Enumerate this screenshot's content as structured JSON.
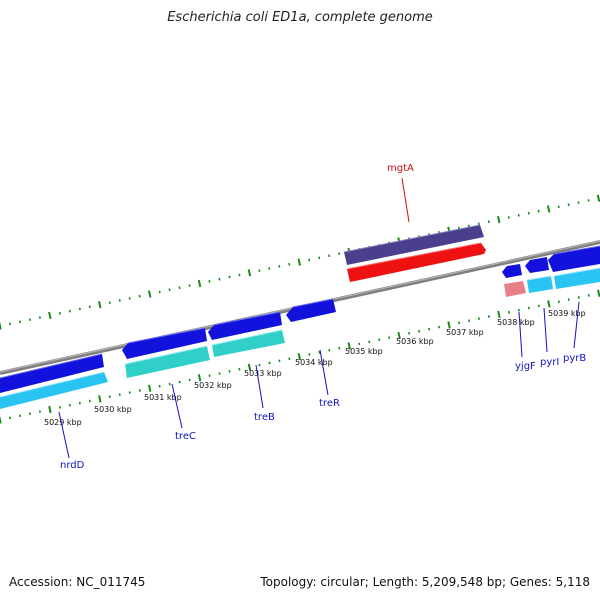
{
  "title": "Escherichia coli ED1a, complete genome",
  "footer": {
    "accession": "Accession: NC_011745",
    "summary": "Topology: circular; Length: 5,209,548 bp; Genes: 5,118"
  },
  "colors": {
    "backbone": "#7f7f7f",
    "tick": "#1a8a1a",
    "forward_gene": "#1010e0",
    "forward_rna": "#29c4f2",
    "reverse_gene": "#1818d8",
    "reverse_rna": "#30d0c8",
    "mgtA_gene": "#4a3f8c",
    "mgtA_rna": "#ee1111",
    "yjgF_rna": "#e8808a",
    "label_blue": "#1010c8",
    "label_red": "#cc1111"
  },
  "scale_labels": [
    "5029 kbp",
    "5030 kbp",
    "5031 kbp",
    "5032 kbp",
    "5033 kbp",
    "5034 kbp",
    "5035 kbp",
    "5036 kbp",
    "5037 kbp",
    "5038 kbp",
    "5039 kbp"
  ],
  "genes": [
    {
      "name": "nrdD",
      "strand": "reverse",
      "color": "blue"
    },
    {
      "name": "treC",
      "strand": "reverse",
      "color": "blue"
    },
    {
      "name": "treB",
      "strand": "reverse",
      "color": "blue"
    },
    {
      "name": "treR",
      "strand": "reverse",
      "color": "blue"
    },
    {
      "name": "mgtA",
      "strand": "forward",
      "color": "red"
    },
    {
      "name": "yjgF",
      "strand": "reverse",
      "color": "blue"
    },
    {
      "name": "pyrI",
      "strand": "reverse",
      "color": "blue"
    },
    {
      "name": "pyrB",
      "strand": "reverse",
      "color": "blue"
    }
  ]
}
